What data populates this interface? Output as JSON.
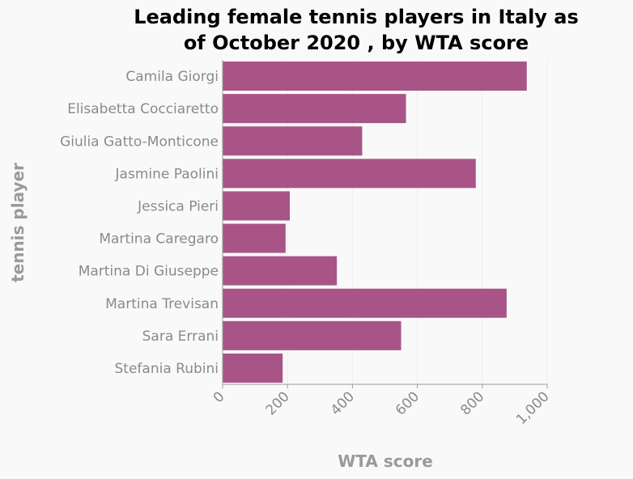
{
  "chart_data": {
    "type": "bar",
    "orientation": "horizontal",
    "title_lines": [
      "Leading female tennis players in Italy as",
      "of October 2020 , by WTA score"
    ],
    "xlabel": "WTA score",
    "ylabel": "tennis player",
    "xlim": [
      0,
      1000
    ],
    "xticks": [
      0,
      200,
      400,
      600,
      800,
      1000
    ],
    "xtick_labels": [
      "0",
      "200",
      "400",
      "600",
      "800",
      "1,000"
    ],
    "grid": true,
    "bar_color": "#a85486",
    "categories": [
      "Camila Giorgi",
      "Elisabetta Cocciaretto",
      "Giulia Gatto-Monticone",
      "Jasmine Paolini",
      "Jessica Pieri",
      "Martina Caregaro",
      "Martina Di Giuseppe",
      "Martina Trevisan",
      "Sara Errani",
      "Stefania Rubini"
    ],
    "values": [
      937,
      565,
      430,
      780,
      207,
      194,
      352,
      875,
      550,
      185
    ]
  }
}
